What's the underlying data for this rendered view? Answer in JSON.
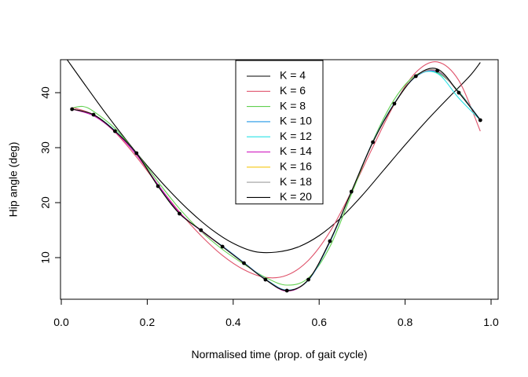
{
  "chart_data": {
    "type": "line",
    "xlabel": "Normalised time (prop. of gait cycle)",
    "ylabel": "Hip angle (deg)",
    "xlim": [
      0.0,
      1.0
    ],
    "ylim": [
      2.5,
      45.5
    ],
    "x_ticks": [
      0.0,
      0.2,
      0.4,
      0.6,
      0.8,
      1.0
    ],
    "x_tick_labels": [
      "0.0",
      "0.2",
      "0.4",
      "0.6",
      "0.8",
      "1.0"
    ],
    "y_ticks": [
      10,
      20,
      30,
      40
    ],
    "y_tick_labels": [
      "10",
      "20",
      "30",
      "40"
    ],
    "grid": false,
    "legend_position": "top-center",
    "observed_points": {
      "x": [
        0.025,
        0.075,
        0.125,
        0.175,
        0.225,
        0.275,
        0.325,
        0.375,
        0.425,
        0.475,
        0.525,
        0.575,
        0.625,
        0.675,
        0.725,
        0.775,
        0.825,
        0.875,
        0.925,
        0.975
      ],
      "y": [
        37,
        36,
        33,
        29,
        23,
        18,
        15,
        12,
        9,
        6,
        4,
        6,
        13,
        22,
        31,
        38,
        43,
        44,
        40,
        35
      ]
    },
    "series": [
      {
        "name": "K = 4",
        "color": "#000000",
        "x": [
          0.0,
          0.05,
          0.1,
          0.15,
          0.2,
          0.25,
          0.3,
          0.35,
          0.4,
          0.45,
          0.5,
          0.55,
          0.6,
          0.65,
          0.7,
          0.75,
          0.8,
          0.85,
          0.9,
          0.95,
          0.975
        ],
        "y": [
          47.5,
          42.0,
          36.6,
          31.5,
          26.7,
          22.3,
          18.4,
          15.1,
          12.6,
          11.1,
          11.0,
          11.9,
          14.0,
          17.2,
          21.3,
          25.9,
          30.5,
          34.9,
          39.0,
          43.0,
          45.5
        ]
      },
      {
        "name": "K = 6",
        "color": "#DF536B",
        "x": [
          0.025,
          0.075,
          0.125,
          0.175,
          0.225,
          0.275,
          0.325,
          0.375,
          0.425,
          0.475,
          0.525,
          0.575,
          0.625,
          0.675,
          0.725,
          0.775,
          0.825,
          0.875,
          0.925,
          0.975
        ],
        "y": [
          37.3,
          36.0,
          32.8,
          28.3,
          23.2,
          18.3,
          14.0,
          10.4,
          7.8,
          6.4,
          6.8,
          9.5,
          14.7,
          22.0,
          30.1,
          37.9,
          43.7,
          45.6,
          42.2,
          33.0
        ]
      },
      {
        "name": "K = 8",
        "color": "#61D04F",
        "x": [
          0.025,
          0.05,
          0.075,
          0.125,
          0.175,
          0.225,
          0.275,
          0.325,
          0.375,
          0.425,
          0.475,
          0.525,
          0.575,
          0.625,
          0.675,
          0.725,
          0.775,
          0.825,
          0.875,
          0.925,
          0.975
        ],
        "y": [
          37.2,
          37.5,
          36.6,
          33.5,
          29.0,
          23.8,
          18.9,
          14.8,
          11.5,
          8.8,
          6.4,
          5.0,
          6.3,
          12.0,
          21.5,
          31.2,
          38.8,
          43.2,
          43.6,
          40.2,
          35.0
        ]
      },
      {
        "name": "K = 10",
        "color": "#2297E6",
        "x": [
          0.025,
          0.075,
          0.125,
          0.175,
          0.225,
          0.275,
          0.325,
          0.375,
          0.425,
          0.475,
          0.525,
          0.575,
          0.625,
          0.675,
          0.725,
          0.775,
          0.825,
          0.875,
          0.925,
          0.975
        ],
        "y": [
          37.0,
          36.0,
          33.1,
          28.9,
          23.2,
          18.1,
          14.9,
          12.1,
          9.1,
          6.1,
          4.1,
          5.9,
          12.8,
          22.0,
          31.1,
          38.1,
          42.9,
          43.8,
          40.1,
          35.1
        ]
      },
      {
        "name": "K = 12",
        "color": "#28E2E5",
        "x": [
          0.025,
          0.075,
          0.125,
          0.175,
          0.225,
          0.275,
          0.325,
          0.375,
          0.425,
          0.475,
          0.525,
          0.575,
          0.625,
          0.675,
          0.725,
          0.775,
          0.825,
          0.875,
          0.925,
          0.975
        ],
        "y": [
          37.0,
          36.0,
          33.0,
          29.0,
          23.0,
          18.0,
          15.0,
          12.0,
          9.0,
          6.0,
          4.0,
          6.0,
          13.0,
          22.0,
          31.0,
          38.0,
          43.0,
          43.5,
          39.0,
          35.0
        ]
      },
      {
        "name": "K = 14",
        "color": "#CD0BBC",
        "x": [
          0.025,
          0.075,
          0.125,
          0.175,
          0.225,
          0.275,
          0.325,
          0.375,
          0.425,
          0.475,
          0.525,
          0.575,
          0.625,
          0.675,
          0.725,
          0.775,
          0.825,
          0.875,
          0.925,
          0.975
        ],
        "y": [
          37.0,
          35.8,
          32.9,
          28.7,
          23.3,
          18.2,
          14.9,
          12.0,
          9.0,
          6.0,
          3.9,
          6.0,
          13.0,
          22.0,
          31.0,
          38.0,
          43.0,
          43.9,
          40.0,
          35.0
        ]
      },
      {
        "name": "K = 16",
        "color": "#F5C710",
        "x": [
          0.025,
          0.075,
          0.125,
          0.175,
          0.225,
          0.275,
          0.325,
          0.375,
          0.425,
          0.475,
          0.525,
          0.575,
          0.625,
          0.675,
          0.725,
          0.775,
          0.825,
          0.875,
          0.925,
          0.975
        ],
        "y": [
          37.0,
          36.0,
          33.0,
          29.0,
          23.0,
          18.0,
          15.0,
          12.0,
          9.0,
          6.0,
          4.0,
          6.0,
          13.0,
          22.0,
          31.0,
          38.0,
          43.0,
          44.0,
          40.0,
          35.0
        ]
      },
      {
        "name": "K = 18",
        "color": "#9E9E9E",
        "x": [
          0.025,
          0.075,
          0.125,
          0.175,
          0.225,
          0.275,
          0.325,
          0.375,
          0.425,
          0.475,
          0.525,
          0.575,
          0.625,
          0.675,
          0.725,
          0.775,
          0.825,
          0.875,
          0.925,
          0.975
        ],
        "y": [
          37.0,
          36.0,
          33.0,
          29.0,
          23.0,
          18.0,
          15.0,
          12.0,
          9.0,
          6.0,
          4.0,
          6.0,
          13.0,
          22.0,
          31.0,
          38.0,
          43.0,
          44.0,
          40.0,
          35.0
        ]
      },
      {
        "name": "K = 20",
        "color": "#000000",
        "x": [
          0.025,
          0.075,
          0.125,
          0.175,
          0.225,
          0.275,
          0.325,
          0.375,
          0.425,
          0.475,
          0.525,
          0.575,
          0.625,
          0.675,
          0.725,
          0.775,
          0.825,
          0.875,
          0.925,
          0.975
        ],
        "y": [
          37.0,
          36.0,
          33.0,
          29.0,
          23.0,
          18.0,
          15.0,
          12.0,
          9.0,
          6.0,
          4.0,
          6.0,
          13.0,
          22.0,
          31.0,
          38.0,
          43.0,
          44.3,
          40.0,
          35.0
        ]
      }
    ]
  }
}
